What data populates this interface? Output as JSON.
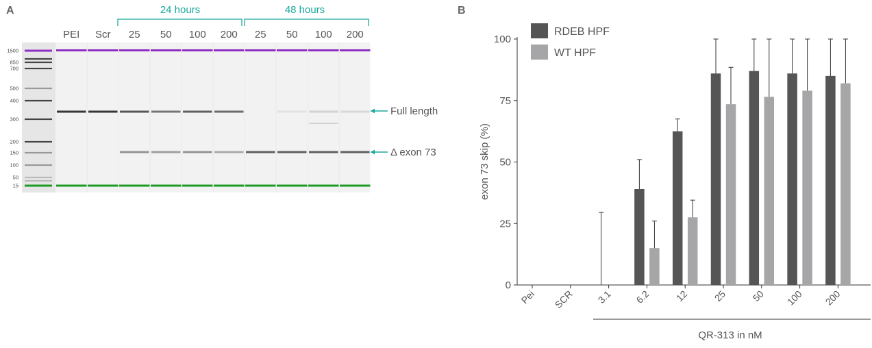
{
  "panelA": {
    "label": "A",
    "group_labels": [
      "24 hours",
      "48 hours"
    ],
    "lane_labels": [
      "PEI",
      "Scr",
      "25",
      "50",
      "100",
      "200",
      "25",
      "50",
      "100",
      "200"
    ],
    "ladder_labels": [
      "1500",
      "850",
      "700",
      "500",
      "400",
      "300",
      "200",
      "150",
      "100",
      "50",
      "15"
    ],
    "band_annotations": [
      "Full length",
      "Δ exon 73"
    ],
    "lanes": [
      {
        "full": 0.9,
        "delta": 0
      },
      {
        "full": 0.9,
        "delta": 0
      },
      {
        "full": 0.75,
        "delta": 0.45
      },
      {
        "full": 0.6,
        "delta": 0.4
      },
      {
        "full": 0.7,
        "delta": 0.45
      },
      {
        "full": 0.65,
        "delta": 0.35
      },
      {
        "full": 0,
        "delta": 0.7
      },
      {
        "full": 0.08,
        "delta": 0.7
      },
      {
        "full": 0.15,
        "delta": 0.7,
        "extra": 0.15
      },
      {
        "full": 0.12,
        "delta": 0.7
      }
    ],
    "colors": {
      "upper_marker": "#8e2fc4",
      "lower_marker": "#1a9a22",
      "annotation": "#1aa99b"
    }
  },
  "panelB": {
    "label": "B",
    "chart_data": {
      "type": "bar",
      "categories": [
        "Pei",
        "SCR",
        "3.1",
        "6.2",
        "12",
        "25",
        "50",
        "100",
        "200"
      ],
      "series": [
        {
          "name": "RDEB HPF",
          "color": "#555555",
          "values": [
            0,
            0,
            0,
            39,
            62.5,
            86,
            87,
            86,
            85
          ],
          "errors": [
            0,
            0,
            29.5,
            12,
            5,
            14,
            13,
            14,
            15
          ]
        },
        {
          "name": "WT HPF",
          "color": "#a6a6a8",
          "values": [
            0,
            0,
            0,
            15,
            27.5,
            73.5,
            76.5,
            79,
            82
          ],
          "errors": [
            0,
            0,
            0,
            11,
            7,
            15,
            23.5,
            21,
            18
          ]
        }
      ],
      "ylabel": "exon 73 skip (%)",
      "xlabel": "QR-313 in nM",
      "yticks": [
        0,
        25,
        50,
        75,
        100
      ],
      "ylim": [
        0,
        100
      ],
      "legend_position": "top-left",
      "grid": false
    }
  }
}
